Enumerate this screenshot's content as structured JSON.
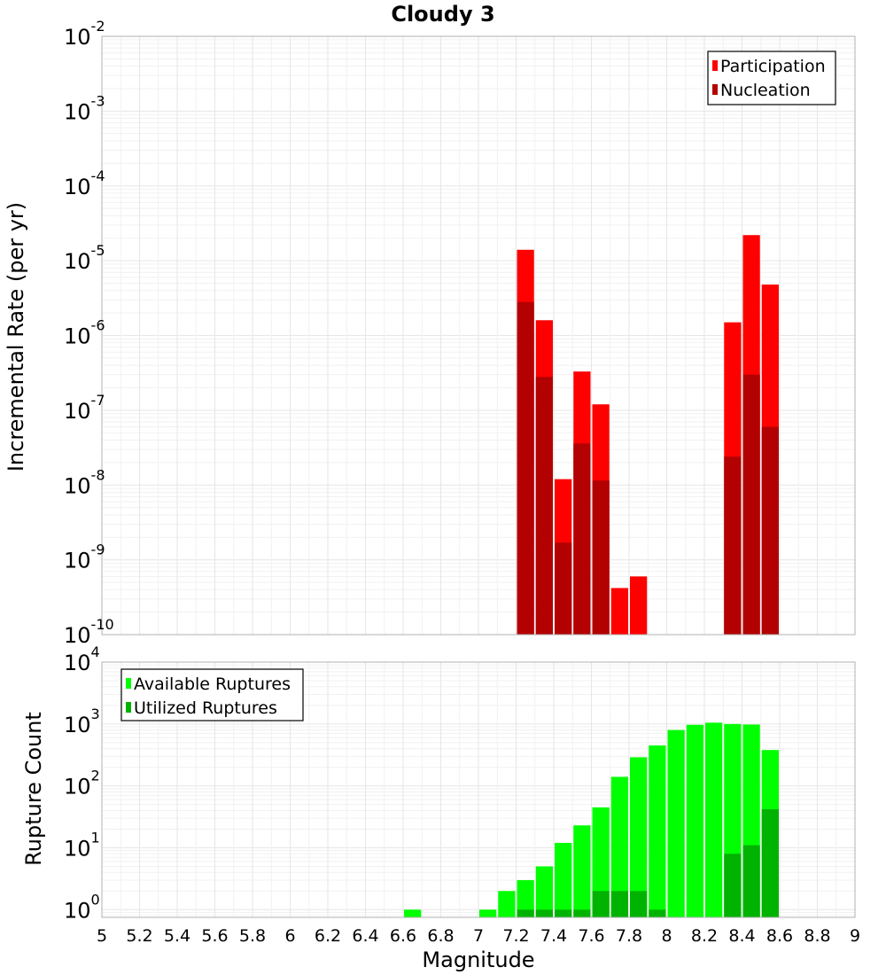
{
  "chart_data": [
    {
      "type": "bar",
      "title": "Cloudy 3",
      "xlabel": "",
      "ylabel": "Incremental Rate (per yr)",
      "yscale": "log",
      "xlim": [
        5,
        9
      ],
      "ylim": [
        1e-10,
        0.01
      ],
      "bar_width": 0.1,
      "grid": true,
      "legend_position": "top-right",
      "series": [
        {
          "name": "Participation",
          "color": "#ff0000",
          "x": [
            7.25,
            7.35,
            7.45,
            7.55,
            7.65,
            7.75,
            7.85,
            8.35,
            8.45,
            8.55
          ],
          "values": [
            1.4e-05,
            1.6e-06,
            1.2e-08,
            3.3e-07,
            1.2e-07,
            4.2e-10,
            6e-10,
            1.5e-06,
            2.2e-05,
            4.8e-06
          ]
        },
        {
          "name": "Nucleation",
          "color": "#b30000",
          "x": [
            7.25,
            7.35,
            7.45,
            7.55,
            7.65,
            8.35,
            8.45,
            8.55
          ],
          "values": [
            2.8e-06,
            2.8e-07,
            1.7e-09,
            3.6e-08,
            1.15e-08,
            2.4e-08,
            3e-07,
            6e-08
          ]
        }
      ]
    },
    {
      "type": "bar",
      "title": "",
      "xlabel": "Magnitude",
      "ylabel": "Rupture Count",
      "yscale": "log",
      "xlim": [
        5,
        9
      ],
      "ylim": [
        0.75,
        10000
      ],
      "bar_width": 0.1,
      "grid": true,
      "legend_position": "top-left",
      "xticks": [
        "5",
        "5.2",
        "5.4",
        "5.6",
        "5.8",
        "6",
        "6.2",
        "6.4",
        "6.6",
        "6.8",
        "7",
        "7.2",
        "7.4",
        "7.6",
        "7.8",
        "8",
        "8.2",
        "8.4",
        "8.6",
        "8.8",
        "9"
      ],
      "series": [
        {
          "name": "Available Ruptures",
          "color": "#00ff00",
          "x": [
            6.65,
            7.05,
            7.15,
            7.25,
            7.35,
            7.45,
            7.55,
            7.65,
            7.75,
            7.85,
            7.95,
            8.05,
            8.15,
            8.25,
            8.35,
            8.45,
            8.55
          ],
          "values": [
            1,
            1,
            2,
            3,
            5,
            12,
            23,
            45,
            140,
            290,
            450,
            800,
            970,
            1050,
            1000,
            980,
            380
          ]
        },
        {
          "name": "Utilized Ruptures",
          "color": "#00b300",
          "x": [
            7.25,
            7.35,
            7.45,
            7.55,
            7.65,
            7.75,
            7.85,
            7.95,
            8.35,
            8.45,
            8.55
          ],
          "values": [
            1,
            1,
            1,
            1,
            2,
            2,
            2,
            1,
            8,
            11,
            42
          ]
        }
      ]
    }
  ]
}
